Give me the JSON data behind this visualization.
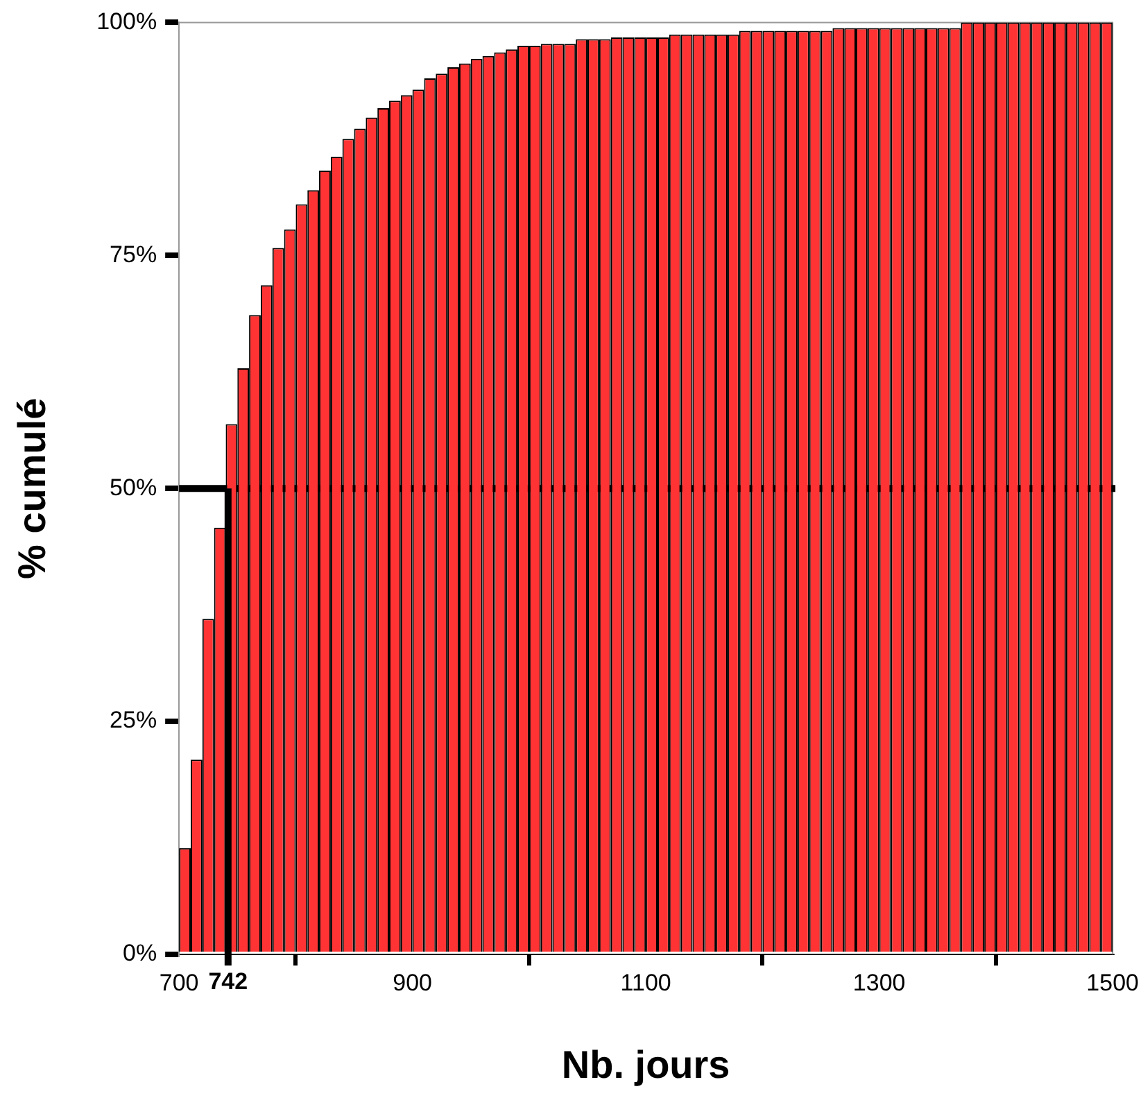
{
  "chart_data": {
    "type": "histogram",
    "xlabel": "Nb. jours",
    "ylabel": "% cumulé",
    "color": "#ff3333",
    "bins": [
      700,
      710,
      720,
      730,
      740,
      750,
      760,
      770,
      780,
      790,
      800,
      810,
      820,
      830,
      840,
      850,
      860,
      870,
      880,
      890,
      900,
      910,
      920,
      930,
      940,
      950,
      960,
      970,
      980,
      990,
      1000,
      1010,
      1020,
      1030,
      1040,
      1050,
      1060,
      1070,
      1080,
      1090,
      1100,
      1110,
      1120,
      1130,
      1140,
      1150,
      1160,
      1170,
      1180,
      1190,
      1200,
      1210,
      1220,
      1230,
      1240,
      1250,
      1260,
      1270,
      1280,
      1290,
      1300,
      1310,
      1320,
      1330,
      1340,
      1350,
      1360,
      1370,
      1380,
      1390,
      1400,
      1410,
      1420,
      1430,
      1440,
      1450,
      1460,
      1470,
      1480,
      1490,
      1500
    ],
    "values": [
      11.4,
      20.9,
      36.0,
      45.8,
      56.9,
      62.9,
      68.6,
      71.8,
      75.8,
      77.8,
      80.5,
      82.0,
      84.1,
      85.6,
      87.5,
      88.6,
      89.8,
      90.8,
      91.6,
      92.2,
      92.8,
      94.0,
      94.5,
      95.2,
      95.6,
      96.1,
      96.4,
      96.8,
      97.1,
      97.5,
      97.5,
      97.7,
      97.7,
      97.7,
      98.2,
      98.2,
      98.2,
      98.4,
      98.4,
      98.4,
      98.4,
      98.4,
      98.7,
      98.7,
      98.7,
      98.7,
      98.7,
      98.7,
      99.1,
      99.1,
      99.1,
      99.1,
      99.1,
      99.1,
      99.1,
      99.1,
      99.4,
      99.4,
      99.4,
      99.4,
      99.4,
      99.4,
      99.4,
      99.4,
      99.4,
      99.4,
      99.4,
      100,
      100,
      100,
      100,
      100,
      100,
      100,
      100,
      100,
      100,
      100,
      100,
      100
    ],
    "xlim": [
      700,
      1500
    ],
    "xticks": [
      700,
      900,
      1100,
      1300,
      1500
    ],
    "ylim": [
      0,
      100
    ],
    "yticks": [
      {
        "value": 0,
        "label": "0%"
      },
      {
        "value": 25,
        "label": "25%"
      },
      {
        "value": 50,
        "label": "50%"
      },
      {
        "value": 75,
        "label": "75%"
      },
      {
        "value": 100,
        "label": "100%"
      }
    ],
    "ref_lines": [
      {
        "axis": "y",
        "value": 50,
        "label": null,
        "color": "#000000"
      },
      {
        "axis": "x",
        "value": 742,
        "label": "742",
        "color": "#000000"
      }
    ],
    "grid": false,
    "legend": false
  }
}
